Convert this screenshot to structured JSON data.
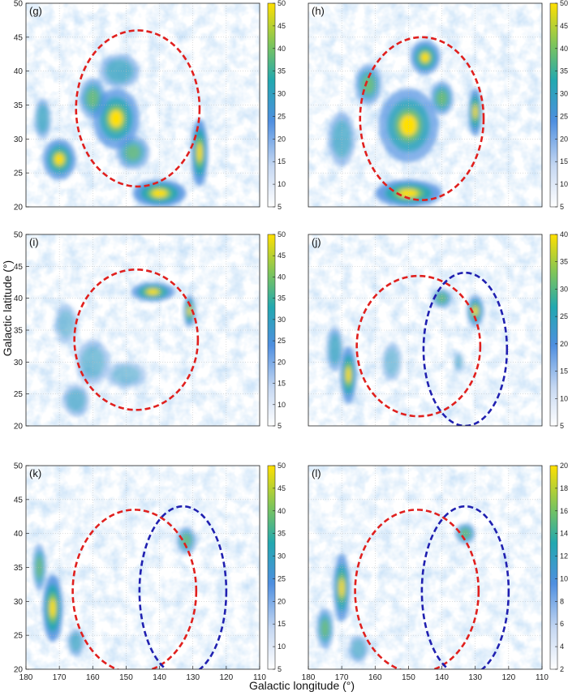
{
  "figure": {
    "xlabel": "Galactic longitude (°)",
    "ylabel": "Galactic latitude (°)"
  },
  "colors": {
    "low": "#ffffff",
    "mid_low": "#c6d8f2",
    "mid": "#4f8fe0",
    "mid_high": "#22a8b0",
    "high": "#7fc55a",
    "top": "#ffe000",
    "red_ellipse": "#e0201e",
    "blue_ellipse": "#2020b0"
  },
  "chart_data": [
    {
      "type": "heatmap",
      "panel_label": "(g)",
      "xlim": [
        180,
        110
      ],
      "ylim": [
        20,
        50
      ],
      "x_ticks": [],
      "y_ticks": [
        20,
        25,
        30,
        35,
        40,
        45,
        50
      ],
      "colorbar": {
        "min": 5,
        "max": 50,
        "ticks": [
          5,
          10,
          15,
          20,
          25,
          30,
          35,
          40,
          45,
          50
        ]
      },
      "ellipses": [
        {
          "color": "red",
          "center_l": 146.5,
          "center_b": 34.5,
          "width_l": 37,
          "height_b": 23
        }
      ],
      "blobs": [
        [
          170,
          27,
          10,
          6,
          0.8
        ],
        [
          153,
          33,
          14,
          9,
          0.75
        ],
        [
          160,
          36,
          8,
          6,
          0.6
        ],
        [
          128,
          28,
          5,
          10,
          0.95
        ],
        [
          140,
          22,
          16,
          4,
          0.95
        ],
        [
          152,
          40,
          12,
          5,
          0.5
        ],
        [
          175,
          33,
          5,
          6,
          0.5
        ],
        [
          148,
          28,
          10,
          5,
          0.55
        ]
      ]
    },
    {
      "type": "heatmap",
      "panel_label": "(h)",
      "xlim": [
        180,
        110
      ],
      "ylim": [
        20,
        50
      ],
      "x_ticks": [],
      "y_ticks": [],
      "colorbar": {
        "min": 5,
        "max": 50,
        "ticks": [
          5,
          10,
          15,
          20,
          25,
          30,
          35,
          40,
          45,
          50
        ]
      },
      "ellipses": [
        {
          "color": "red",
          "center_l": 146,
          "center_b": 33,
          "width_l": 37,
          "height_b": 24
        }
      ],
      "blobs": [
        [
          150,
          32,
          18,
          11,
          0.7
        ],
        [
          145,
          42,
          9,
          5,
          0.8
        ],
        [
          130,
          34,
          4,
          7,
          0.95
        ],
        [
          150,
          22,
          20,
          4,
          0.9
        ],
        [
          162,
          38,
          8,
          6,
          0.6
        ],
        [
          140,
          36,
          7,
          5,
          0.65
        ],
        [
          170,
          30,
          8,
          8,
          0.45
        ]
      ]
    },
    {
      "type": "heatmap",
      "panel_label": "(i)",
      "xlim": [
        180,
        110
      ],
      "ylim": [
        20,
        50
      ],
      "x_ticks": [],
      "y_ticks": [
        20,
        25,
        30,
        35,
        40,
        45,
        50
      ],
      "colorbar": {
        "min": 5,
        "max": 50,
        "ticks": [
          5,
          10,
          15,
          20,
          25,
          30,
          35,
          40,
          45,
          50
        ]
      },
      "ellipses": [
        {
          "color": "red",
          "center_l": 147,
          "center_b": 33.5,
          "width_l": 37,
          "height_b": 22
        }
      ],
      "blobs": [
        [
          142,
          41,
          13,
          3,
          0.85
        ],
        [
          131,
          38,
          3.5,
          5,
          0.85
        ],
        [
          160,
          30,
          10,
          7,
          0.35
        ],
        [
          165,
          24,
          8,
          5,
          0.4
        ],
        [
          150,
          28,
          12,
          4,
          0.3
        ],
        [
          168,
          36,
          7,
          6,
          0.3
        ]
      ]
    },
    {
      "type": "heatmap",
      "panel_label": "(j)",
      "xlim": [
        180,
        110
      ],
      "ylim": [
        20,
        50
      ],
      "x_ticks": [],
      "y_ticks": [],
      "colorbar": {
        "min": 5,
        "max": 40,
        "ticks": [
          5,
          10,
          15,
          20,
          25,
          30,
          35,
          40
        ]
      },
      "ellipses": [
        {
          "color": "red",
          "center_l": 147,
          "center_b": 32.5,
          "width_l": 37,
          "height_b": 22
        },
        {
          "color": "blue",
          "center_l": 133,
          "center_b": 32,
          "width_l": 25,
          "height_b": 24
        }
      ],
      "blobs": [
        [
          168,
          28,
          5,
          9,
          0.85
        ],
        [
          130,
          38,
          5,
          5,
          0.75
        ],
        [
          140,
          40,
          6,
          3,
          0.6
        ],
        [
          172,
          32,
          5,
          7,
          0.5
        ],
        [
          155,
          30,
          6,
          6,
          0.3
        ],
        [
          135,
          30,
          3,
          3,
          0.35
        ]
      ]
    },
    {
      "type": "heatmap",
      "panel_label": "(k)",
      "xlim": [
        180,
        110
      ],
      "ylim": [
        20,
        50
      ],
      "x_ticks": [
        180,
        170,
        160,
        150,
        140,
        130,
        120,
        110
      ],
      "y_ticks": [
        20,
        25,
        30,
        35,
        40,
        45,
        50
      ],
      "colorbar": {
        "min": 5,
        "max": 50,
        "ticks": [
          5,
          10,
          15,
          20,
          25,
          30,
          35,
          40,
          45,
          50
        ]
      },
      "ellipses": [
        {
          "color": "red",
          "center_l": 147.5,
          "center_b": 31.5,
          "width_l": 37,
          "height_b": 24
        },
        {
          "color": "blue",
          "center_l": 133,
          "center_b": 31.5,
          "width_l": 26,
          "height_b": 25
        }
      ],
      "blobs": [
        [
          172,
          29,
          6,
          10,
          0.95
        ],
        [
          176,
          35,
          4,
          7,
          0.6
        ],
        [
          132,
          39,
          6,
          4,
          0.55
        ],
        [
          165,
          24,
          5,
          4,
          0.45
        ]
      ]
    },
    {
      "type": "heatmap",
      "panel_label": "(l)",
      "xlim": [
        180,
        110
      ],
      "ylim": [
        20,
        50
      ],
      "x_ticks": [
        180,
        170,
        160,
        150,
        140,
        130,
        120,
        110
      ],
      "y_ticks": [],
      "colorbar": {
        "min": 2,
        "max": 20,
        "ticks": [
          2,
          4,
          6,
          8,
          10,
          12,
          14,
          16,
          18,
          20
        ]
      },
      "ellipses": [
        {
          "color": "red",
          "center_l": 147.5,
          "center_b": 31.5,
          "width_l": 37,
          "height_b": 24
        },
        {
          "color": "blue",
          "center_l": 133,
          "center_b": 31.5,
          "width_l": 26,
          "height_b": 25
        }
      ],
      "blobs": [
        [
          170,
          32,
          5,
          10,
          0.85
        ],
        [
          175,
          26,
          5,
          6,
          0.6
        ],
        [
          133,
          40,
          6,
          3,
          0.6
        ],
        [
          165,
          23,
          6,
          4,
          0.4
        ]
      ]
    }
  ]
}
